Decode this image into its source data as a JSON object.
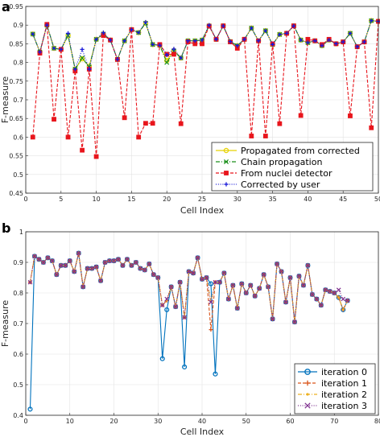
{
  "chart_data": [
    {
      "type": "line",
      "panel_label": "a",
      "xlabel": "Cell Index",
      "ylabel": "F-measure",
      "xlim": [
        0,
        50
      ],
      "ylim": [
        0.45,
        0.95
      ],
      "xticks": [
        0,
        5,
        10,
        15,
        20,
        25,
        30,
        35,
        40,
        45,
        50
      ],
      "yticks": [
        0.45,
        0.5,
        0.55,
        0.6,
        0.65,
        0.7,
        0.75,
        0.8,
        0.85,
        0.9,
        0.95
      ],
      "ytick_labels": [
        "0.45",
        "0.5",
        "0.55",
        "0.6",
        "0.65",
        "0.7",
        "0.75",
        "0.8",
        "0.85",
        "0.9",
        "0.95"
      ],
      "grid": true,
      "legend_position": "bottom-right",
      "x": [
        1,
        2,
        3,
        4,
        5,
        6,
        7,
        8,
        9,
        10,
        11,
        12,
        13,
        14,
        15,
        16,
        17,
        18,
        19,
        20,
        21,
        22,
        23,
        24,
        25,
        26,
        27,
        28,
        29,
        30,
        31,
        32,
        33,
        34,
        35,
        36,
        37,
        38,
        39,
        40,
        41,
        42,
        43,
        44,
        45,
        46,
        47,
        48,
        49,
        50
      ],
      "series": [
        {
          "name": "Propagated from corrected",
          "color": "#e6d200",
          "marker": "circle",
          "style": "solid",
          "values": [
            0.876,
            0.828,
            0.9,
            0.838,
            0.835,
            0.872,
            0.782,
            0.81,
            0.79,
            0.862,
            0.876,
            0.86,
            0.808,
            0.858,
            0.888,
            0.88,
            0.905,
            0.848,
            0.846,
            0.805,
            0.832,
            0.812,
            0.858,
            0.858,
            0.86,
            0.898,
            0.862,
            0.898,
            0.856,
            0.845,
            0.862,
            0.892,
            0.858,
            0.885,
            0.848,
            0.875,
            0.878,
            0.898,
            0.86,
            0.853,
            0.858,
            0.845,
            0.86,
            0.85,
            0.855,
            0.878,
            0.842,
            0.855,
            0.912,
            0.91
          ]
        },
        {
          "name": "Chain propagation",
          "color": "#1a8f1a",
          "marker": "x",
          "style": "dashdot",
          "values": [
            0.876,
            0.828,
            0.9,
            0.838,
            0.835,
            0.872,
            0.782,
            0.812,
            0.788,
            0.862,
            0.876,
            0.86,
            0.808,
            0.858,
            0.888,
            0.88,
            0.905,
            0.848,
            0.846,
            0.8,
            0.83,
            0.812,
            0.858,
            0.858,
            0.86,
            0.898,
            0.862,
            0.898,
            0.856,
            0.845,
            0.862,
            0.892,
            0.858,
            0.885,
            0.848,
            0.875,
            0.878,
            0.898,
            0.86,
            0.853,
            0.858,
            0.845,
            0.86,
            0.85,
            0.855,
            0.878,
            0.842,
            0.855,
            0.912,
            0.91
          ]
        },
        {
          "name": "From nuclei detector",
          "color": "#e8151c",
          "marker": "square",
          "style": "dashed",
          "values": [
            0.6,
            0.825,
            0.902,
            0.648,
            0.835,
            0.6,
            0.777,
            0.565,
            0.782,
            0.548,
            0.872,
            0.86,
            0.808,
            0.652,
            0.888,
            0.6,
            0.637,
            0.637,
            0.848,
            0.822,
            0.822,
            0.636,
            0.855,
            0.85,
            0.85,
            0.897,
            0.862,
            0.898,
            0.855,
            0.838,
            0.862,
            0.603,
            0.858,
            0.603,
            0.85,
            0.636,
            0.878,
            0.898,
            0.658,
            0.862,
            0.858,
            0.848,
            0.862,
            0.85,
            0.855,
            0.657,
            0.842,
            0.855,
            0.625,
            0.91
          ]
        },
        {
          "name": "Corrected by user",
          "color": "#1a1ad9",
          "marker": "plus",
          "style": "dotted",
          "values": [
            0.876,
            0.828,
            0.9,
            0.838,
            0.835,
            0.878,
            0.782,
            0.835,
            0.782,
            0.862,
            0.88,
            0.86,
            0.808,
            0.858,
            0.888,
            0.88,
            0.908,
            0.848,
            0.846,
            0.82,
            0.836,
            0.812,
            0.858,
            0.858,
            0.86,
            0.9,
            0.862,
            0.898,
            0.856,
            0.845,
            0.862,
            0.892,
            0.858,
            0.885,
            0.848,
            0.875,
            0.878,
            0.898,
            0.86,
            0.853,
            0.858,
            0.845,
            0.86,
            0.85,
            0.855,
            0.878,
            0.842,
            0.855,
            0.912,
            0.91
          ]
        }
      ]
    },
    {
      "type": "line",
      "panel_label": "b",
      "xlabel": "Cell Index",
      "ylabel": "F-measure",
      "xlim": [
        0,
        80
      ],
      "ylim": [
        0.4,
        1.0
      ],
      "xticks": [
        0,
        10,
        20,
        30,
        40,
        50,
        60,
        70,
        80
      ],
      "yticks": [
        0.4,
        0.5,
        0.6,
        0.7,
        0.8,
        0.9,
        1.0
      ],
      "ytick_labels": [
        "0.4",
        "0.5",
        "0.6",
        "0.7",
        "0.8",
        "0.9",
        "1"
      ],
      "grid": true,
      "legend_position": "bottom-right",
      "x": [
        1,
        2,
        3,
        4,
        5,
        6,
        7,
        8,
        9,
        10,
        11,
        12,
        13,
        14,
        15,
        16,
        17,
        18,
        19,
        20,
        21,
        22,
        23,
        24,
        25,
        26,
        27,
        28,
        29,
        30,
        31,
        32,
        33,
        34,
        35,
        36,
        37,
        38,
        39,
        40,
        41,
        42,
        43,
        44,
        45,
        46,
        47,
        48,
        49,
        50,
        51,
        52,
        53,
        54,
        55,
        56,
        57,
        58,
        59,
        60,
        61,
        62,
        63,
        64,
        65,
        66,
        67,
        68,
        69,
        70,
        71,
        72,
        73
      ],
      "series": [
        {
          "name": "iteration 0",
          "color": "#0072bd",
          "marker": "circle",
          "style": "solid",
          "values": [
            0.42,
            0.92,
            0.91,
            0.9,
            0.915,
            0.905,
            0.86,
            0.89,
            0.89,
            0.905,
            0.87,
            0.93,
            0.82,
            0.88,
            0.88,
            0.885,
            0.84,
            0.9,
            0.905,
            0.905,
            0.91,
            0.89,
            0.91,
            0.89,
            0.9,
            0.88,
            0.875,
            0.895,
            0.86,
            0.85,
            0.585,
            0.745,
            0.82,
            0.755,
            0.835,
            0.558,
            0.87,
            0.865,
            0.915,
            0.845,
            0.85,
            0.83,
            0.535,
            0.835,
            0.865,
            0.78,
            0.825,
            0.75,
            0.83,
            0.8,
            0.825,
            0.79,
            0.815,
            0.86,
            0.82,
            0.715,
            0.895,
            0.87,
            0.77,
            0.85,
            0.705,
            0.855,
            0.825,
            0.89,
            0.795,
            0.78,
            0.76,
            0.81,
            0.805,
            0.8,
            0.785,
            0.745,
            0.775
          ]
        },
        {
          "name": "iteration 1",
          "color": "#d95319",
          "marker": "plus",
          "style": "dashed",
          "values": [
            0.835,
            0.92,
            0.91,
            0.9,
            0.915,
            0.905,
            0.86,
            0.89,
            0.89,
            0.905,
            0.87,
            0.93,
            0.82,
            0.88,
            0.88,
            0.885,
            0.84,
            0.9,
            0.905,
            0.905,
            0.91,
            0.89,
            0.91,
            0.89,
            0.9,
            0.88,
            0.875,
            0.895,
            0.86,
            0.85,
            0.76,
            0.775,
            0.82,
            0.755,
            0.835,
            0.72,
            0.87,
            0.865,
            0.915,
            0.845,
            0.85,
            0.68,
            0.835,
            0.835,
            0.865,
            0.78,
            0.825,
            0.75,
            0.83,
            0.8,
            0.825,
            0.79,
            0.815,
            0.86,
            0.82,
            0.715,
            0.895,
            0.87,
            0.77,
            0.85,
            0.705,
            0.855,
            0.825,
            0.89,
            0.795,
            0.78,
            0.76,
            0.81,
            0.805,
            0.8,
            0.785,
            0.745,
            0.775
          ]
        },
        {
          "name": "iteration 2",
          "color": "#edb120",
          "marker": "dot",
          "style": "dashdot",
          "values": [
            0.835,
            0.92,
            0.91,
            0.9,
            0.915,
            0.905,
            0.86,
            0.89,
            0.89,
            0.905,
            0.87,
            0.93,
            0.82,
            0.88,
            0.88,
            0.885,
            0.84,
            0.9,
            0.905,
            0.905,
            0.91,
            0.89,
            0.91,
            0.89,
            0.9,
            0.88,
            0.875,
            0.895,
            0.86,
            0.85,
            0.76,
            0.775,
            0.82,
            0.755,
            0.835,
            0.72,
            0.87,
            0.865,
            0.915,
            0.845,
            0.85,
            0.77,
            0.835,
            0.835,
            0.865,
            0.78,
            0.825,
            0.75,
            0.83,
            0.8,
            0.825,
            0.79,
            0.815,
            0.86,
            0.82,
            0.715,
            0.895,
            0.87,
            0.77,
            0.85,
            0.705,
            0.855,
            0.825,
            0.89,
            0.795,
            0.78,
            0.76,
            0.81,
            0.805,
            0.8,
            0.785,
            0.745,
            0.775
          ]
        },
        {
          "name": "iteration 3",
          "color": "#7e2f8e",
          "marker": "x",
          "style": "dotted",
          "values": [
            0.835,
            0.92,
            0.91,
            0.9,
            0.915,
            0.905,
            0.86,
            0.89,
            0.89,
            0.905,
            0.87,
            0.93,
            0.82,
            0.88,
            0.88,
            0.885,
            0.84,
            0.9,
            0.905,
            0.905,
            0.91,
            0.89,
            0.91,
            0.89,
            0.9,
            0.88,
            0.875,
            0.895,
            0.86,
            0.85,
            0.76,
            0.78,
            0.82,
            0.755,
            0.835,
            0.72,
            0.87,
            0.865,
            0.915,
            0.845,
            0.85,
            0.77,
            0.835,
            0.835,
            0.865,
            0.78,
            0.825,
            0.75,
            0.83,
            0.8,
            0.825,
            0.79,
            0.815,
            0.86,
            0.82,
            0.715,
            0.895,
            0.87,
            0.77,
            0.85,
            0.705,
            0.855,
            0.825,
            0.89,
            0.795,
            0.78,
            0.76,
            0.81,
            0.805,
            0.8,
            0.81,
            0.78,
            0.775
          ]
        }
      ]
    }
  ]
}
